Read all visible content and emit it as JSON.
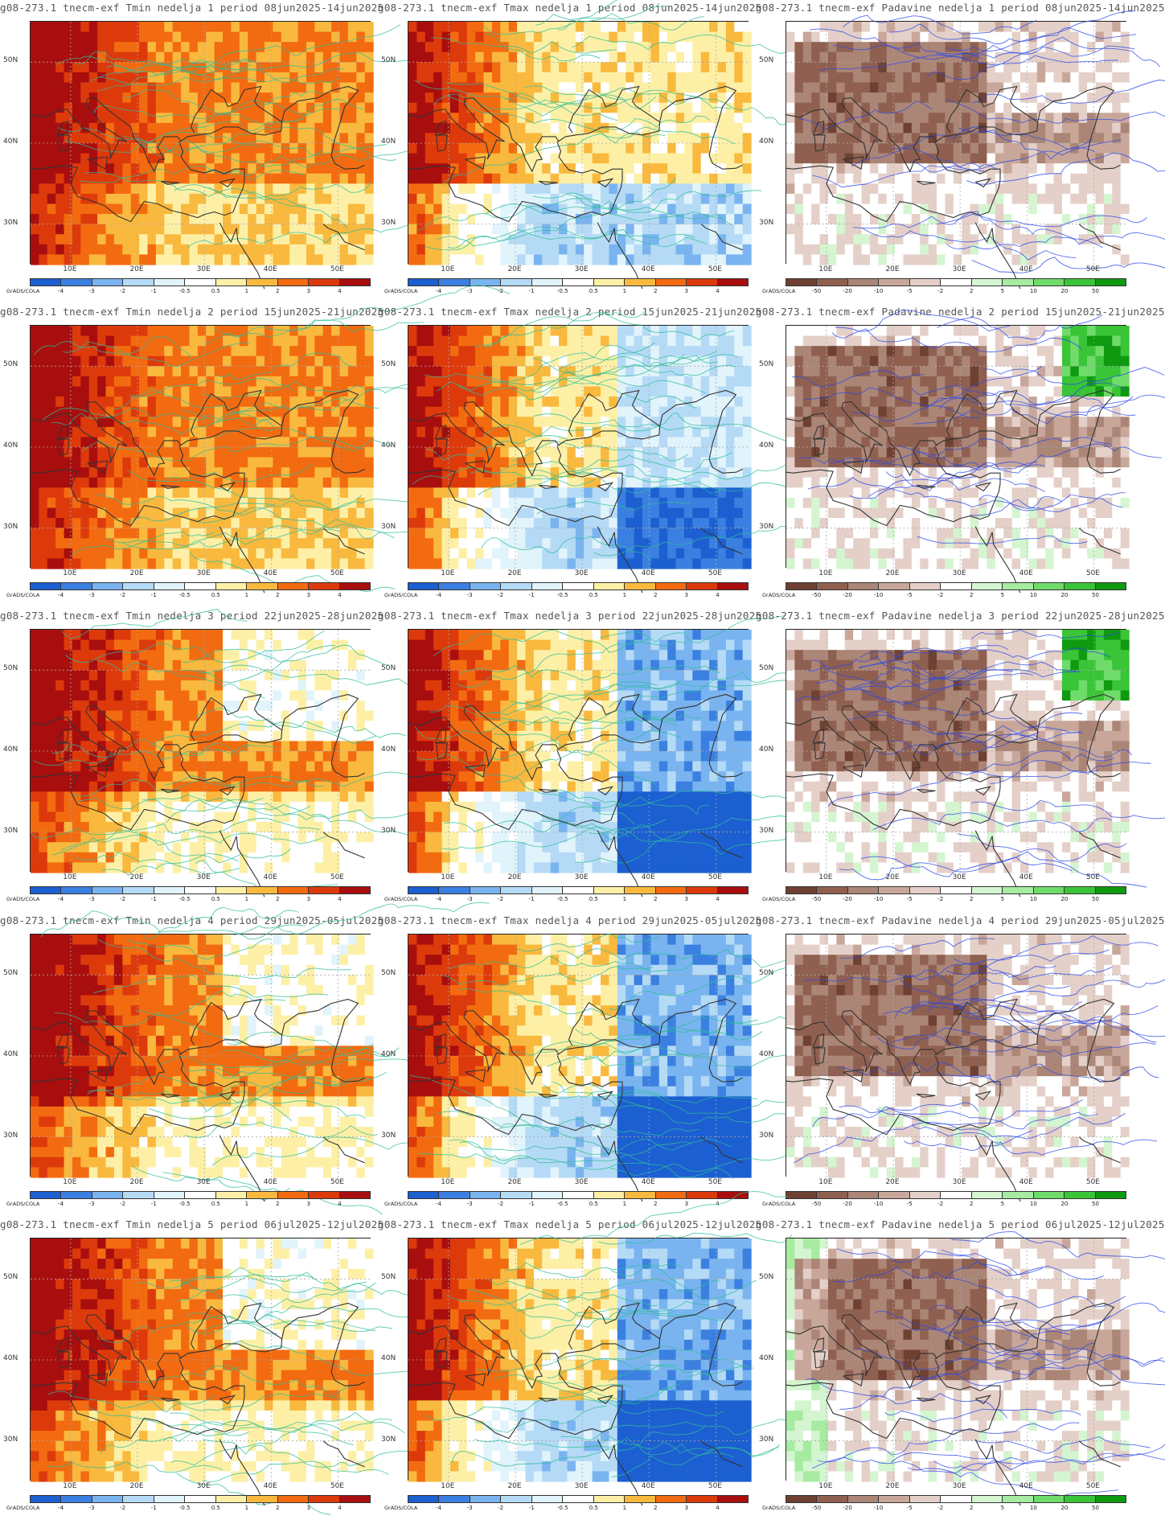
{
  "source_label": "GrADS/COLA",
  "x_ticks": [
    "10E",
    "20E",
    "30E",
    "40E",
    "50E"
  ],
  "y_ticks": [
    "50N",
    "40N",
    "30N"
  ],
  "scales": {
    "temp": {
      "labels": [
        "-4",
        "-3",
        "-2",
        "-1",
        "-0.5",
        "0.5",
        "1",
        "2",
        "3",
        "4"
      ],
      "colors": [
        "#1c5fd1",
        "#3b80e0",
        "#79b4f0",
        "#b5daf6",
        "#e1f3fb",
        "#ffffff",
        "#fdf0a6",
        "#f9b93e",
        "#f36b10",
        "#dd3a0c",
        "#a80e0e"
      ]
    },
    "precip": {
      "labels": [
        "-50",
        "-20",
        "-10",
        "-5",
        "-2",
        "2",
        "5",
        "10",
        "20",
        "50"
      ],
      "colors": [
        "#6e4132",
        "#8f6050",
        "#ab8576",
        "#c8a79a",
        "#e4d0c8",
        "#ffffff",
        "#d4f5d0",
        "#a6eba0",
        "#6fdc6a",
        "#3ac437",
        "#0f9a10"
      ]
    }
  },
  "rows": [
    {
      "week": "1",
      "titles": [
        "g08-273.1 tnecm-exf Tmin nedelja 1 period 08jun2025-14jun2025",
        "g08-273.1 tnecm-exf Tmax nedelja 1 period 08jun2025-14jun2025",
        "g08-273.1 tnecm-exf Padavine nedelja 1 period 08jun2025-14jun2025"
      ]
    },
    {
      "week": "2",
      "titles": [
        "g08-273.1 tnecm-exf Tmin nedelja 2 period 15jun2025-21jun2025",
        "g08-273.1 tnecm-exf Tmax nedelja 2 period 15jun2025-21jun2025",
        "g08-273.1 tnecm-exf Padavine nedelja 2 period 15jun2025-21jun2025"
      ]
    },
    {
      "week": "3",
      "titles": [
        "g08-273.1 tnecm-exf Tmin nedelja 3 period 22jun2025-28jun2025",
        "g08-273.1 tnecm-exf Tmax nedelja 3 period 22jun2025-28jun2025",
        "g08-273.1 tnecm-exf Padavine nedelja 3 period 22jun2025-28jun2025"
      ]
    },
    {
      "week": "4",
      "titles": [
        "g08-273.1 tnecm-exf Tmin nedelja 4 period 29jun2025-05jul2025",
        "g08-273.1 tnecm-exf Tmax nedelja 4 period 29jun2025-05jul2025",
        "g08-273.1 tnecm-exf Padavine nedelja 4 period 29jun2025-05jul2025"
      ]
    },
    {
      "week": "5",
      "titles": [
        "g08-273.1 tnecm-exf Tmin nedelja 5 period 06jul2025-12jul2025",
        "g08-273.1 tnecm-exf Tmax nedelja 5 period 06jul2025-12jul2025",
        "g08-273.1 tnecm-exf Padavine nedelja 5 period 06jul2025-12jul2025"
      ]
    }
  ]
}
